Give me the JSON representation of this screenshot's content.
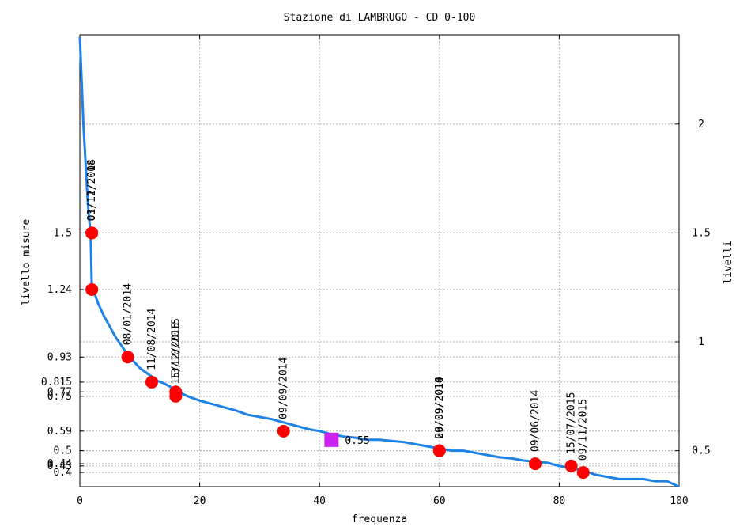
{
  "chart_data": {
    "type": "line",
    "title": "Stazione di LAMBRUGO - CD 0-100",
    "xlabel": "frequenza",
    "ylabel": "livello misure",
    "y2label": "livelli",
    "xlim": [
      0,
      100
    ],
    "ylim": [
      0.335,
      2.41
    ],
    "grid": true,
    "x_ticks": [
      0,
      20,
      40,
      60,
      80,
      100
    ],
    "x_grid": [
      20,
      40,
      60,
      80
    ],
    "y_left_ticks": [
      {
        "value": 1.5,
        "label": "1.5"
      },
      {
        "value": 1.24,
        "label": "1.24"
      },
      {
        "value": 0.93,
        "label": "0.93"
      },
      {
        "value": 0.815,
        "label": "0.815"
      },
      {
        "value": 0.77,
        "label": "0.77"
      },
      {
        "value": 0.75,
        "label": "0.75"
      },
      {
        "value": 0.59,
        "label": "0.59"
      },
      {
        "value": 0.5,
        "label": "0.5"
      },
      {
        "value": 0.44,
        "label": "0.44"
      },
      {
        "value": 0.43,
        "label": "0.43"
      },
      {
        "value": 0.4,
        "label": "0.4"
      }
    ],
    "y_right_ticks": [
      {
        "value": 2,
        "label": "2"
      },
      {
        "value": 1.5,
        "label": "1.5"
      },
      {
        "value": 1,
        "label": "1"
      },
      {
        "value": 0.5,
        "label": "0.5"
      }
    ],
    "curve": {
      "color": "#1e82e6",
      "x": [
        0,
        0.3,
        0.6,
        1.0,
        1.3,
        1.6,
        1.8,
        2,
        2.5,
        3,
        4,
        5,
        6,
        7,
        8,
        9,
        10,
        11,
        12,
        13,
        14,
        15,
        16,
        18,
        20,
        22,
        24,
        26,
        28,
        30,
        32,
        34,
        36,
        38,
        40,
        42,
        44,
        46,
        48,
        50,
        52,
        54,
        56,
        58,
        60,
        62,
        64,
        66,
        68,
        70,
        72,
        74,
        76,
        78,
        80,
        82,
        84,
        86,
        88,
        90,
        92,
        94,
        96,
        98,
        100
      ],
      "y": [
        2.4,
        2.2,
        2.0,
        1.8,
        1.65,
        1.55,
        1.5,
        1.24,
        1.22,
        1.18,
        1.12,
        1.07,
        1.02,
        0.98,
        0.94,
        0.91,
        0.88,
        0.86,
        0.84,
        0.82,
        0.81,
        0.795,
        0.775,
        0.75,
        0.73,
        0.715,
        0.7,
        0.685,
        0.665,
        0.655,
        0.645,
        0.63,
        0.615,
        0.6,
        0.59,
        0.575,
        0.565,
        0.56,
        0.55,
        0.55,
        0.545,
        0.54,
        0.53,
        0.52,
        0.51,
        0.5,
        0.5,
        0.49,
        0.48,
        0.47,
        0.465,
        0.455,
        0.45,
        0.445,
        0.43,
        0.42,
        0.41,
        0.39,
        0.38,
        0.37,
        0.37,
        0.37,
        0.36,
        0.36,
        0.335
      ]
    },
    "points": [
      {
        "x": 2,
        "y": 1.5,
        "label": "01/11/2014"
      },
      {
        "x": 2,
        "y": 1.5,
        "label": "03/12/2008"
      },
      {
        "x": 2,
        "y": 1.24,
        "label": ""
      },
      {
        "x": 8,
        "y": 0.93,
        "label": "08/01/2014"
      },
      {
        "x": 12,
        "y": 0.815,
        "label": "11/08/2014"
      },
      {
        "x": 16,
        "y": 0.77,
        "label": "13/10/2015"
      },
      {
        "x": 16,
        "y": 0.75,
        "label": "15/12/2015"
      },
      {
        "x": 34,
        "y": 0.59,
        "label": "09/09/2014"
      },
      {
        "x": 60,
        "y": 0.5,
        "label": "09/09/2010"
      },
      {
        "x": 60,
        "y": 0.5,
        "label": "26/09/2014"
      },
      {
        "x": 76,
        "y": 0.44,
        "label": "09/06/2014"
      },
      {
        "x": 82,
        "y": 0.43,
        "label": "15/07/2015"
      },
      {
        "x": 84,
        "y": 0.4,
        "label": "09/11/2015"
      }
    ],
    "current": {
      "x": 42,
      "y": 0.55,
      "label": "0.55",
      "color": "#cc22ee"
    },
    "point_color": "#ff0000"
  }
}
